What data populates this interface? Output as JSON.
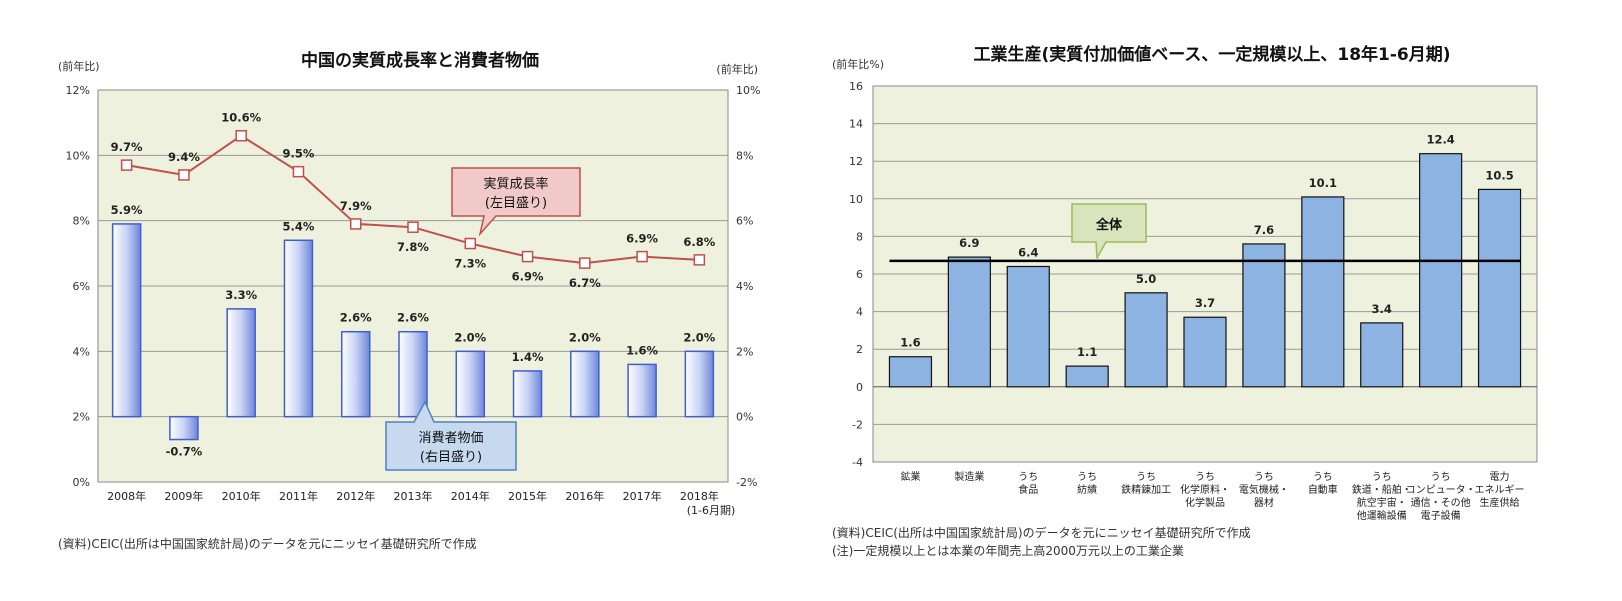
{
  "chart_data": [
    {
      "type": "bar",
      "title": "中国の実質成長率と消費者物価",
      "left_unit": "(前年比)",
      "right_unit": "(前年比)",
      "categories": [
        "2008年",
        "2009年",
        "2010年",
        "2011年",
        "2012年",
        "2013年",
        "2014年",
        "2015年",
        "2016年",
        "2017年",
        "2018年"
      ],
      "category_note": "(1-6月期)",
      "left_ylim": [
        0,
        12
      ],
      "left_ticks": [
        "0%",
        "2%",
        "4%",
        "6%",
        "8%",
        "10%",
        "12%"
      ],
      "right_ylim": [
        -2,
        10
      ],
      "right_ticks": [
        "-2%",
        "0%",
        "2%",
        "4%",
        "6%",
        "8%",
        "10%"
      ],
      "series": [
        {
          "name": "実質成長率",
          "axis": "left",
          "kind": "line",
          "color": "#c0504d",
          "values": [
            9.7,
            9.4,
            10.6,
            9.5,
            7.9,
            7.8,
            7.3,
            6.9,
            6.7,
            6.9,
            6.8
          ],
          "labels": [
            "9.7%",
            "9.4%",
            "10.6%",
            "9.5%",
            "7.9%",
            "7.8%",
            "7.3%",
            "6.9%",
            "6.7%",
            "6.9%",
            "6.8%"
          ]
        },
        {
          "name": "消費者物価",
          "axis": "right",
          "kind": "bar",
          "color": "#4f6fd6",
          "values": [
            5.9,
            -0.7,
            3.3,
            5.4,
            2.6,
            2.6,
            2.0,
            1.4,
            2.0,
            1.6,
            2.0
          ],
          "labels": [
            "5.9%",
            "-0.7%",
            "3.3%",
            "5.4%",
            "2.6%",
            "2.6%",
            "2.0%",
            "1.4%",
            "2.0%",
            "1.6%",
            "2.0%"
          ]
        }
      ],
      "callouts": {
        "line": [
          "実質成長率",
          "(左目盛り)"
        ],
        "bar": [
          "消費者物価",
          "(右目盛り)"
        ]
      },
      "note": "(資料)CEIC(出所は中国国家統計局)のデータを元にニッセイ基礎研究所で作成",
      "grid": true
    },
    {
      "type": "bar",
      "title": "工業生産(実質付加価値ベース、一定規模以上、18年1-6月期)",
      "unit": "(前年比%)",
      "ylim": [
        -4,
        16
      ],
      "yticks": [
        "-4",
        "-2",
        "0",
        "2",
        "4",
        "6",
        "8",
        "10",
        "12",
        "14",
        "16"
      ],
      "categories": [
        [
          "鉱業"
        ],
        [
          "製造業"
        ],
        [
          "うち",
          "食品"
        ],
        [
          "うち",
          "紡績"
        ],
        [
          "うち",
          "鉄精錬加工"
        ],
        [
          "うち",
          "化学原料・",
          "化学製品"
        ],
        [
          "うち",
          "電気機械・",
          "器材"
        ],
        [
          "うち",
          "自動車"
        ],
        [
          "うち",
          "鉄道・船舶・",
          "航空宇宙・",
          "他運輸設備"
        ],
        [
          "うち",
          "コンピュータ・",
          "通信・その他",
          "電子設備"
        ],
        [
          "電力",
          "エネルギー",
          "生産供給"
        ]
      ],
      "values": [
        1.6,
        6.9,
        6.4,
        1.1,
        5.0,
        3.7,
        7.6,
        10.1,
        3.4,
        12.4,
        10.5
      ],
      "labels": [
        "1.6",
        "6.9",
        "6.4",
        "1.1",
        "5.0",
        "3.7",
        "7.6",
        "10.1",
        "3.4",
        "12.4",
        "10.5"
      ],
      "overall_line": 6.7,
      "overall_label": "全体",
      "bar_color": "#8db3e2",
      "notes": [
        "(資料)CEIC(出所は中国国家統計局)のデータを元にニッセイ基礎研究所で作成",
        "(注)一定規模以上とは本業の年間売上高2000万元以上の工業企業"
      ],
      "grid": true
    }
  ]
}
